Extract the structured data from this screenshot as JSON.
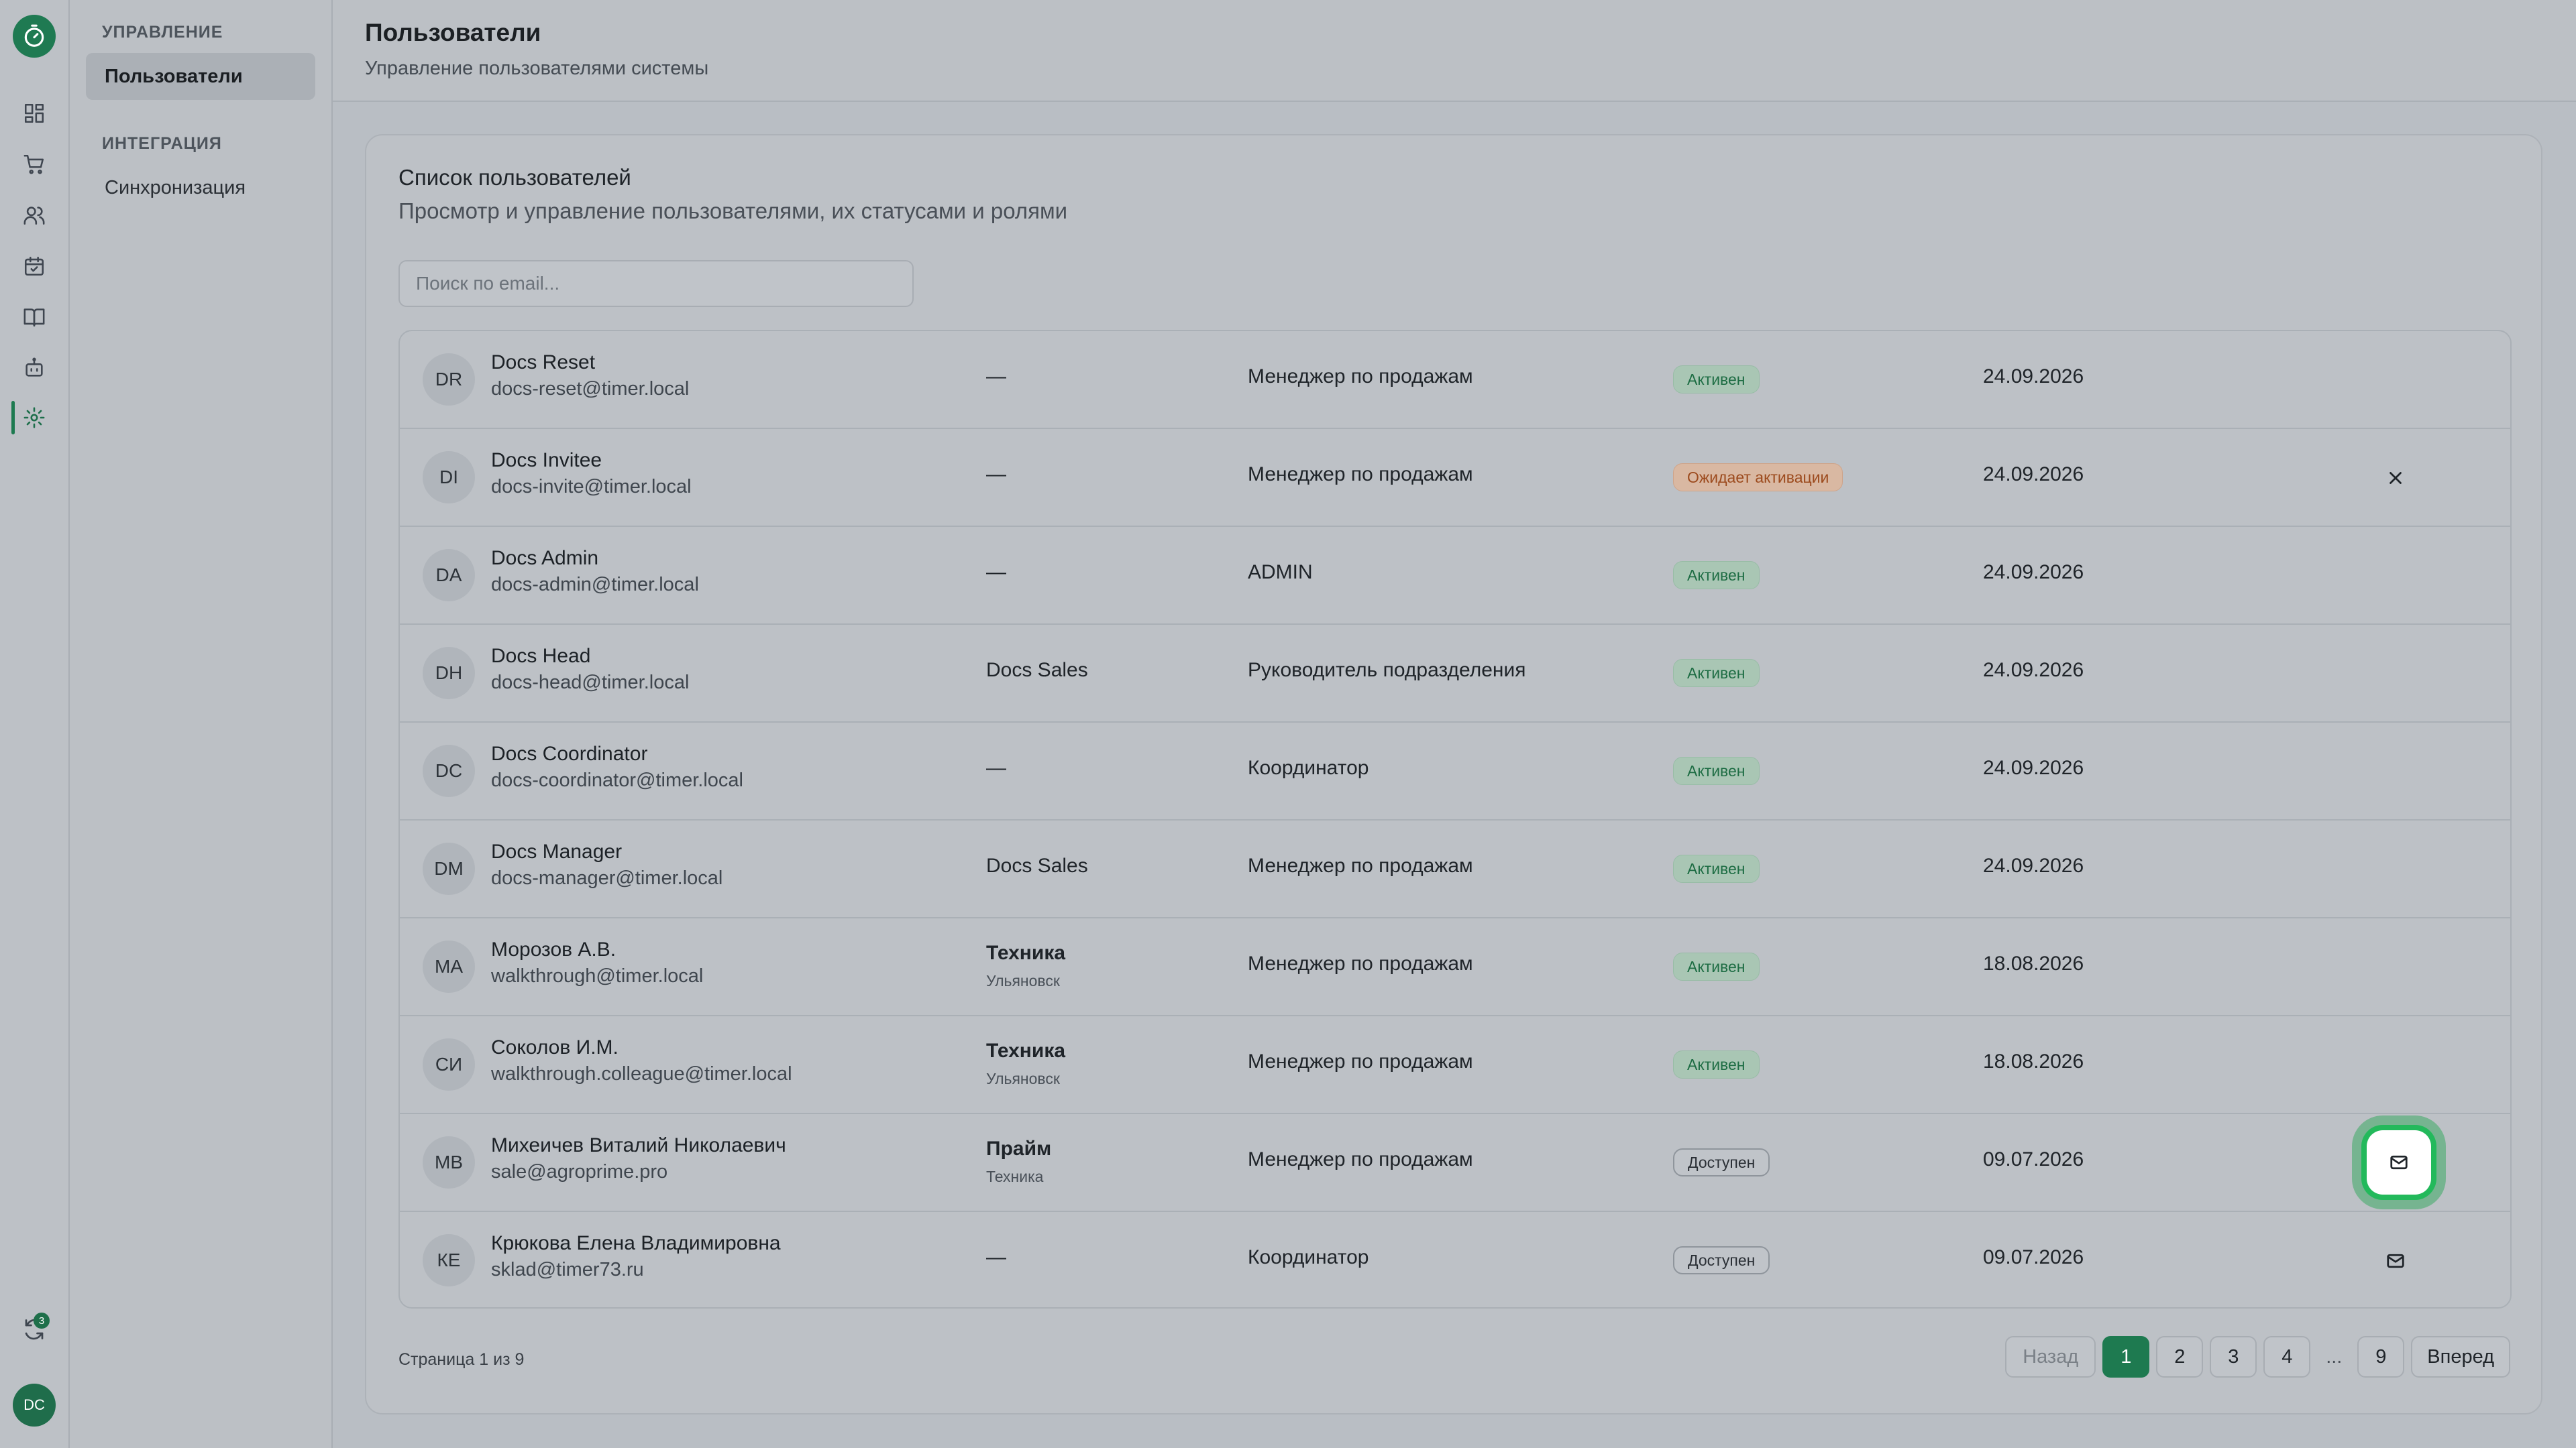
{
  "rail": {
    "items": [
      "dashboard-icon",
      "cart-icon",
      "users-icon",
      "calendar-icon",
      "book-icon",
      "bot-icon",
      "gear-icon"
    ],
    "sync_badge": "3",
    "avatar_initials": "DC",
    "accent": "#1e7a50"
  },
  "subnav": {
    "section_manage": "УПРАВЛЕНИЕ",
    "item_users": "Пользователи",
    "section_integration": "ИНТЕГРАЦИЯ",
    "item_sync": "Синхронизация"
  },
  "header": {
    "title": "Пользователи",
    "subtitle": "Управление пользователями системы"
  },
  "card": {
    "title": "Список пользователей",
    "description": "Просмотр и управление пользователями, их статусами и ролями",
    "search_placeholder": "Поиск по email..."
  },
  "users": [
    {
      "initials": "DR",
      "name": "Docs Reset",
      "email": "docs-reset@timer.local",
      "dept": "—",
      "city": "",
      "role": "Менеджер по продажам",
      "status": "Активен",
      "status_kind": "ok",
      "date": "24.09.2026",
      "action": ""
    },
    {
      "initials": "DI",
      "name": "Docs Invitee",
      "email": "docs-invite@timer.local",
      "dept": "—",
      "city": "",
      "role": "Менеджер по продажам",
      "status": "Ожидает активации",
      "status_kind": "wait",
      "date": "24.09.2026",
      "action": "close-icon"
    },
    {
      "initials": "DA",
      "name": "Docs Admin",
      "email": "docs-admin@timer.local",
      "dept": "—",
      "city": "",
      "role": "ADMIN",
      "status": "Активен",
      "status_kind": "ok",
      "date": "24.09.2026",
      "action": ""
    },
    {
      "initials": "DH",
      "name": "Docs Head",
      "email": "docs-head@timer.local",
      "dept": "Docs Sales",
      "city": "",
      "role": "Руководитель подразделения",
      "status": "Активен",
      "status_kind": "ok",
      "date": "24.09.2026",
      "action": ""
    },
    {
      "initials": "DC",
      "name": "Docs Coordinator",
      "email": "docs-coordinator@timer.local",
      "dept": "—",
      "city": "",
      "role": "Координатор",
      "status": "Активен",
      "status_kind": "ok",
      "date": "24.09.2026",
      "action": ""
    },
    {
      "initials": "DM",
      "name": "Docs Manager",
      "email": "docs-manager@timer.local",
      "dept": "Docs Sales",
      "city": "",
      "role": "Менеджер по продажам",
      "status": "Активен",
      "status_kind": "ok",
      "date": "24.09.2026",
      "action": ""
    },
    {
      "initials": "МА",
      "name": "Морозов А.В.",
      "email": "walkthrough@timer.local",
      "dept": "Техника",
      "city": "Ульяновск",
      "role": "Менеджер по продажам",
      "status": "Активен",
      "status_kind": "ok",
      "date": "18.08.2026",
      "action": ""
    },
    {
      "initials": "СИ",
      "name": "Соколов И.М.",
      "email": "walkthrough.colleague@timer.local",
      "dept": "Техника",
      "city": "Ульяновск",
      "role": "Менеджер по продажам",
      "status": "Активен",
      "status_kind": "ok",
      "date": "18.08.2026",
      "action": ""
    },
    {
      "initials": "МВ",
      "name": "Михеичев Виталий Николаевич",
      "email": "sale@agroprime.pro",
      "dept": "Прайм",
      "city": "Техника",
      "role": "Менеджер по продажам",
      "status": "Доступен",
      "status_kind": "avail",
      "date": "09.07.2026",
      "action": "mail-icon-highlighted"
    },
    {
      "initials": "КЕ",
      "name": "Крюкова Елена Владимировна",
      "email": "sklad@timer73.ru",
      "dept": "—",
      "city": "",
      "role": "Координатор",
      "status": "Доступен",
      "status_kind": "avail",
      "date": "09.07.2026",
      "action": "mail-icon"
    }
  ],
  "pagination": {
    "page_info": "Страница 1 из 9",
    "prev": "Назад",
    "next": "Вперед",
    "pages": [
      "1",
      "2",
      "3",
      "4"
    ],
    "ellipsis": "...",
    "last": "9",
    "current": "1"
  }
}
